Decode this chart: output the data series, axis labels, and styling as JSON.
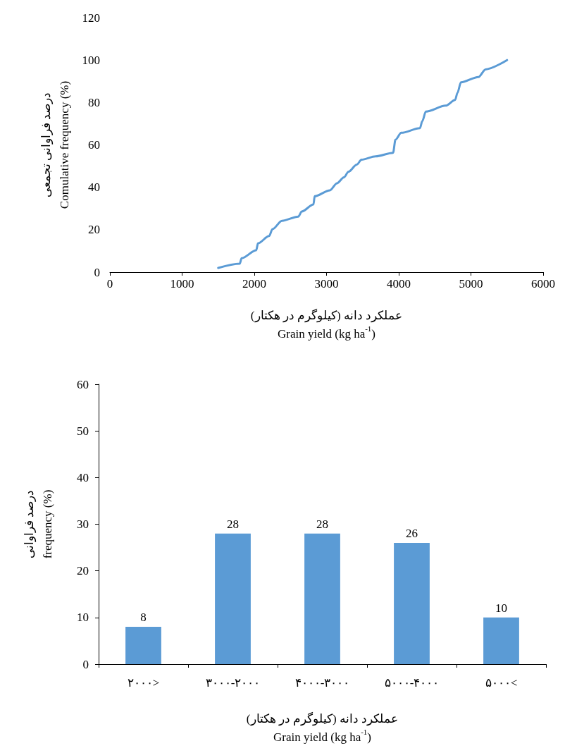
{
  "chart_data": [
    {
      "type": "line",
      "xlabel": "عملکرد دانه (کیلوگرم در هکتار)\nGrain yield (kg ha$^{-1}$)",
      "ylabel": "درصد فراوانی تجمعی\nComulative frequency (%)",
      "x": [
        1500,
        1798,
        1824,
        2026,
        2051,
        2204,
        2252,
        2382,
        2609,
        2657,
        2819,
        2836,
        3047,
        3144,
        3241,
        3305,
        3419,
        3484,
        3679,
        3922,
        3954,
        4035,
        4294,
        4326,
        4375,
        4651,
        4781,
        4813,
        4861,
        5104,
        5202,
        5500
      ],
      "values": [
        2,
        4,
        6.6,
        10.3,
        13.6,
        17,
        20.3,
        24.2,
        26.2,
        28.6,
        31.9,
        35.8,
        38.6,
        41.9,
        44.7,
        47.4,
        50.7,
        53,
        54.6,
        56.3,
        62.4,
        65.7,
        67.9,
        71.2,
        75.7,
        78.5,
        81.2,
        84.5,
        89.5,
        92,
        95.6,
        100
      ],
      "color": "#5b9bd5",
      "marker": "none",
      "line_style": "solid",
      "grid": false,
      "xlim": [
        0,
        6000
      ],
      "xticks": [
        0,
        1000,
        2000,
        3000,
        4000,
        5000,
        6000
      ],
      "ylim": [
        0,
        120
      ],
      "yticks": [
        0,
        20,
        40,
        60,
        80,
        100,
        120
      ]
    },
    {
      "type": "bar",
      "xlabel": "عملکرد دانه (کیلوگرم در هکتار)\nGrain yield (kg ha$^{-1}$)",
      "ylabel": "درصد فراوانی\nfrequency (%)",
      "categories": [
        "۲۰۰۰>",
        "۳۰۰۰-۲۰۰۰",
        "۴۰۰۰-۳۰۰۰",
        "۵۰۰۰-۴۰۰۰",
        "۵۰۰۰<"
      ],
      "values": [
        8,
        28,
        28,
        26,
        10
      ],
      "color": "#5b9bd5",
      "data_labels": true,
      "grid": false,
      "ylim": [
        0,
        60
      ],
      "yticks": [
        0,
        10,
        20,
        30,
        40,
        50,
        60
      ]
    }
  ]
}
